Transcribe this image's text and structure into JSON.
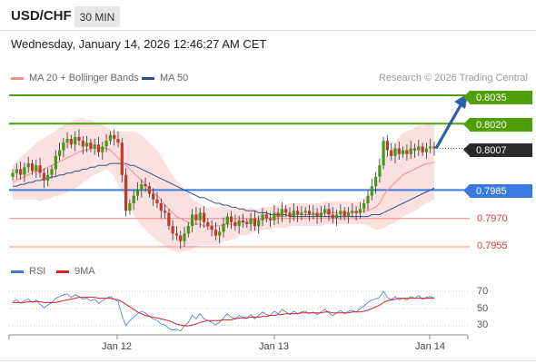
{
  "header": {
    "symbol": "USD/CHF",
    "timeframe": "30 MIN",
    "datetime": "Wednesday, January 14, 2026 12:46:27 AM CET"
  },
  "legend": {
    "ma20_label": "MA 20 + Bollinger Bands",
    "ma50_label": "MA 50",
    "credit": "Research © 2026 Trading Central"
  },
  "colors": {
    "candle_up": "#3f9a14",
    "candle_down": "#c0392b",
    "ma20": "#f28b8b",
    "bollinger_fill": "#fbe0e0",
    "ma50": "#2f4f8f",
    "resistance": "#4e9f08",
    "pivot": "#3a7ae3",
    "support": "#f3a0a0",
    "rsi": "#4a72d8",
    "rsi_ma": "#d62222",
    "arrow": "#2a5fad"
  },
  "chart_data": [
    {
      "type": "candlestick",
      "y_range": [
        0.7945,
        0.8043
      ],
      "x_ticks": [
        "Jan 12",
        "Jan 13",
        "Jan 14"
      ],
      "levels": [
        {
          "value": 0.8035,
          "label": "0.8035",
          "kind": "resistance"
        },
        {
          "value": 0.802,
          "label": "0.8020",
          "kind": "resistance"
        },
        {
          "value": 0.8007,
          "label": "0.8007",
          "kind": "last"
        },
        {
          "value": 0.7985,
          "label": "0.7985",
          "kind": "pivot"
        },
        {
          "value": 0.797,
          "label": "0.7970",
          "kind": "support"
        },
        {
          "value": 0.7955,
          "label": "0.7955",
          "kind": "support"
        }
      ],
      "close": [
        0.7994,
        0.7996,
        0.7993,
        0.7997,
        0.7999,
        0.7995,
        0.7998,
        0.7994,
        0.799,
        0.7993,
        0.7996,
        0.8003,
        0.8006,
        0.801,
        0.8012,
        0.8009,
        0.8013,
        0.8011,
        0.8008,
        0.801,
        0.8007,
        0.8009,
        0.8005,
        0.8008,
        0.8011,
        0.8014,
        0.8012,
        0.801,
        0.7993,
        0.7974,
        0.7978,
        0.7982,
        0.7985,
        0.7988,
        0.7987,
        0.7983,
        0.798,
        0.7978,
        0.7974,
        0.7973,
        0.7966,
        0.7962,
        0.7961,
        0.7958,
        0.7962,
        0.7966,
        0.7972,
        0.7969,
        0.7973,
        0.7968,
        0.7966,
        0.7964,
        0.7961,
        0.7963,
        0.7967,
        0.7971,
        0.7968,
        0.7966,
        0.7969,
        0.7968,
        0.7967,
        0.797,
        0.7966,
        0.7969,
        0.7972,
        0.797,
        0.7969,
        0.7973,
        0.7971,
        0.7975,
        0.7973,
        0.7971,
        0.7974,
        0.7972,
        0.7973,
        0.7974,
        0.7972,
        0.7973,
        0.7971,
        0.7973,
        0.7975,
        0.7972,
        0.797,
        0.7972,
        0.7974,
        0.7971,
        0.7973,
        0.7974,
        0.7973,
        0.7975,
        0.7978,
        0.7982,
        0.7987,
        0.7992,
        0.7998,
        0.8011,
        0.8006,
        0.8003,
        0.8007,
        0.8004,
        0.8006,
        0.8004,
        0.8007,
        0.8006,
        0.8008,
        0.8005,
        0.8007,
        0.8008,
        0.8007
      ],
      "ma20": [
        0.7989,
        0.799,
        0.7991,
        0.7992,
        0.7993,
        0.7994,
        0.7995,
        0.7995,
        0.7996,
        0.7997,
        0.7998,
        0.7999,
        0.8,
        0.8001,
        0.8002,
        0.8003,
        0.8004,
        0.8005,
        0.8006,
        0.8006,
        0.8007,
        0.8007,
        0.8007,
        0.8007,
        0.8007,
        0.8006,
        0.8004,
        0.8002,
        0.8,
        0.7998,
        0.7996,
        0.7994,
        0.7992,
        0.799,
        0.7988,
        0.7986,
        0.7984,
        0.7982,
        0.798,
        0.7977,
        0.7975,
        0.7973,
        0.7971,
        0.797,
        0.7969,
        0.7968,
        0.7967,
        0.7967,
        0.7967,
        0.7966,
        0.7966,
        0.7966,
        0.7966,
        0.7966,
        0.7967,
        0.7967,
        0.7967,
        0.7967,
        0.7968,
        0.7968,
        0.7968,
        0.7969,
        0.7969,
        0.7969,
        0.797,
        0.797,
        0.797,
        0.7971,
        0.7971,
        0.7971,
        0.7971,
        0.7972,
        0.7972,
        0.7972,
        0.7972,
        0.7972,
        0.7972,
        0.7972,
        0.7972,
        0.7972,
        0.7973,
        0.7973,
        0.7973,
        0.7973,
        0.7973,
        0.7973,
        0.7973,
        0.7973,
        0.7973,
        0.7973,
        0.7974,
        0.7974,
        0.7975,
        0.7976,
        0.7978,
        0.7982,
        0.7985,
        0.7987,
        0.7989,
        0.7991,
        0.7993,
        0.7994,
        0.7995,
        0.7996,
        0.7997,
        0.7998,
        0.7999,
        0.7999,
        0.8
      ],
      "band_width": [
        0.0009,
        0.001,
        0.0011,
        0.0012,
        0.0013,
        0.0014,
        0.0015,
        0.0016,
        0.0016,
        0.0017,
        0.0017,
        0.0017,
        0.0018,
        0.0018,
        0.0018,
        0.0018,
        0.0018,
        0.0018,
        0.0017,
        0.0016,
        0.0015,
        0.0014,
        0.0013,
        0.0012,
        0.0011,
        0.0011,
        0.0012,
        0.0014,
        0.0016,
        0.0018,
        0.002,
        0.0022,
        0.0023,
        0.0024,
        0.0024,
        0.0024,
        0.0024,
        0.0024,
        0.0023,
        0.0022,
        0.0021,
        0.002,
        0.0019,
        0.0018,
        0.0016,
        0.0015,
        0.0013,
        0.0012,
        0.0011,
        0.001,
        0.001,
        0.001,
        0.001,
        0.001,
        0.0009,
        0.0009,
        0.0008,
        0.0008,
        0.0007,
        0.0007,
        0.0007,
        0.0007,
        0.0006,
        0.0006,
        0.0006,
        0.0006,
        0.0006,
        0.0006,
        0.0006,
        0.0006,
        0.0006,
        0.0006,
        0.0006,
        0.0006,
        0.0006,
        0.0006,
        0.0006,
        0.0006,
        0.0006,
        0.0006,
        0.0006,
        0.0006,
        0.0006,
        0.0006,
        0.0006,
        0.0006,
        0.0006,
        0.0006,
        0.0006,
        0.0006,
        0.0007,
        0.0008,
        0.001,
        0.0012,
        0.0014,
        0.0017,
        0.0019,
        0.002,
        0.0021,
        0.0022,
        0.0022,
        0.0022,
        0.0022,
        0.0022,
        0.0022,
        0.0021,
        0.0021,
        0.002,
        0.002
      ],
      "ma50": [
        0.7987,
        0.7987,
        0.7988,
        0.7988,
        0.7989,
        0.7989,
        0.799,
        0.799,
        0.7991,
        0.7991,
        0.7992,
        0.7992,
        0.7993,
        0.7993,
        0.7994,
        0.7994,
        0.7995,
        0.7995,
        0.7996,
        0.7996,
        0.7997,
        0.7997,
        0.7998,
        0.7998,
        0.7998,
        0.7999,
        0.7999,
        0.7999,
        0.7999,
        0.7999,
        0.7998,
        0.7998,
        0.7997,
        0.7996,
        0.7995,
        0.7994,
        0.7993,
        0.7992,
        0.7991,
        0.799,
        0.7989,
        0.7988,
        0.7987,
        0.7986,
        0.7985,
        0.7984,
        0.7983,
        0.7982,
        0.7981,
        0.7981,
        0.798,
        0.7979,
        0.7978,
        0.7978,
        0.7977,
        0.7977,
        0.7976,
        0.7976,
        0.7975,
        0.7975,
        0.7974,
        0.7974,
        0.7974,
        0.7973,
        0.7973,
        0.7973,
        0.7972,
        0.7972,
        0.7972,
        0.7972,
        0.7972,
        0.7971,
        0.7971,
        0.7971,
        0.7971,
        0.7971,
        0.7971,
        0.7971,
        0.7971,
        0.7971,
        0.7971,
        0.7971,
        0.7971,
        0.7971,
        0.7971,
        0.7971,
        0.7971,
        0.7971,
        0.7971,
        0.7971,
        0.7971,
        0.7971,
        0.7972,
        0.7972,
        0.7972,
        0.7973,
        0.7974,
        0.7975,
        0.7976,
        0.7977,
        0.7978,
        0.7979,
        0.798,
        0.7981,
        0.7982,
        0.7983,
        0.7984,
        0.7985,
        0.7986
      ]
    },
    {
      "type": "line",
      "panel": "RSI",
      "series_names": [
        "RSI",
        "9MA"
      ],
      "y_ticks": [
        70,
        50,
        30
      ],
      "y_range": [
        20,
        80
      ],
      "rsi": [
        58,
        60,
        56,
        59,
        61,
        57,
        60,
        55,
        51,
        54,
        57,
        62,
        64,
        66,
        67,
        63,
        66,
        64,
        61,
        62,
        59,
        61,
        56,
        59,
        62,
        64,
        61,
        58,
        42,
        30,
        36,
        40,
        44,
        47,
        45,
        41,
        38,
        36,
        32,
        31,
        27,
        25,
        26,
        24,
        30,
        34,
        42,
        38,
        44,
        38,
        36,
        34,
        31,
        34,
        39,
        44,
        40,
        38,
        42,
        40,
        39,
        43,
        38,
        42,
        46,
        43,
        42,
        47,
        44,
        49,
        46,
        43,
        47,
        44,
        46,
        47,
        44,
        46,
        43,
        46,
        49,
        45,
        42,
        45,
        48,
        44,
        47,
        48,
        46,
        50,
        53,
        57,
        60,
        61,
        63,
        70,
        63,
        60,
        64,
        60,
        62,
        60,
        64,
        62,
        65,
        61,
        63,
        64,
        62
      ],
      "rsi_ma": [
        57,
        57,
        57,
        57,
        58,
        58,
        58,
        58,
        57,
        57,
        57,
        57,
        58,
        59,
        60,
        61,
        62,
        63,
        63,
        63,
        63,
        63,
        62,
        62,
        62,
        62,
        61,
        60,
        58,
        55,
        52,
        49,
        46,
        44,
        42,
        41,
        40,
        39,
        38,
        37,
        36,
        34,
        32,
        31,
        30,
        30,
        31,
        32,
        34,
        35,
        36,
        36,
        36,
        36,
        37,
        37,
        37,
        38,
        39,
        39,
        39,
        40,
        40,
        40,
        41,
        41,
        42,
        42,
        43,
        43,
        44,
        44,
        44,
        44,
        45,
        45,
        45,
        45,
        45,
        45,
        46,
        46,
        45,
        45,
        45,
        45,
        45,
        46,
        46,
        46,
        47,
        48,
        50,
        52,
        54,
        57,
        59,
        60,
        61,
        62,
        62,
        62,
        62,
        62,
        62,
        62,
        62,
        62,
        62
      ]
    }
  ]
}
